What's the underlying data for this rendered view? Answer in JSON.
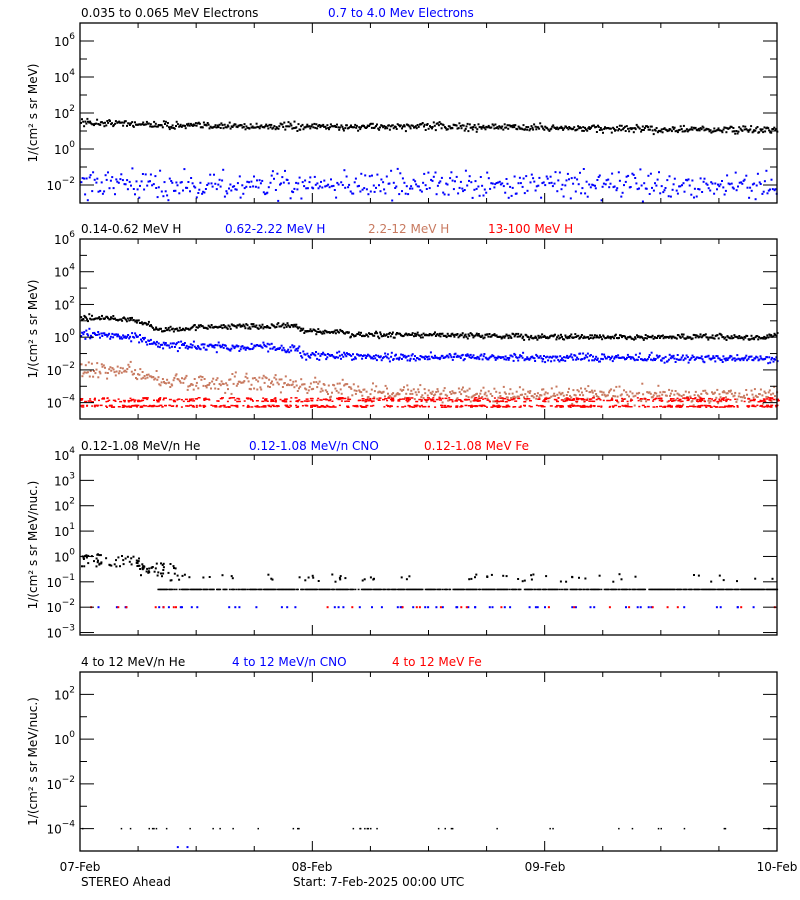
{
  "chart_data": [
    {
      "type": "scatter",
      "ylabel": "1/(cm² s sr MeV)",
      "yscale": "log",
      "ylim": [
        0.001,
        10000000
      ],
      "ytick_exponents": [
        -2,
        0,
        2,
        4,
        6
      ],
      "minor_exponents": [
        -1,
        1,
        3,
        5
      ],
      "series": [
        {
          "name": "0.035 to 0.065 MeV Electrons",
          "color": "#000000",
          "trend": [
            [
              0,
              30
            ],
            [
              6,
              25
            ],
            [
              10,
              20
            ],
            [
              24,
              17
            ],
            [
              36,
              18
            ],
            [
              48,
              15
            ],
            [
              60,
              12
            ],
            [
              72,
              11
            ]
          ]
        },
        {
          "name": "0.7 to 4.0 Mev Electrons",
          "color": "#0000ff",
          "trend": [
            [
              0,
              0.01
            ],
            [
              24,
              0.01
            ],
            [
              48,
              0.01
            ],
            [
              72,
              0.01
            ]
          ]
        }
      ]
    },
    {
      "type": "scatter",
      "ylabel": "1/(cm² s sr MeV)",
      "yscale": "log",
      "ylim": [
        1e-05,
        1000000
      ],
      "ytick_exponents": [
        -4,
        -2,
        0,
        2,
        4,
        6
      ],
      "minor_exponents": [
        -3,
        -1,
        1,
        3,
        5
      ],
      "series": [
        {
          "name": "0.14-0.62 MeV H",
          "color": "#000000",
          "trend": [
            [
              0,
              15
            ],
            [
              5,
              13
            ],
            [
              7,
              6
            ],
            [
              8,
              2.5
            ],
            [
              10,
              3
            ],
            [
              12,
              4
            ],
            [
              20,
              5
            ],
            [
              22.5,
              4.5
            ],
            [
              23,
              2.5
            ],
            [
              27,
              2
            ],
            [
              28,
              1.4
            ],
            [
              40,
              1.3
            ],
            [
              50,
              1
            ],
            [
              66,
              1
            ],
            [
              70,
              0.9
            ],
            [
              72,
              1.4
            ]
          ]
        },
        {
          "name": "0.62-2.22 MeV H",
          "color": "#0000ff",
          "trend": [
            [
              0,
              1.5
            ],
            [
              5,
              1.3
            ],
            [
              8,
              0.35
            ],
            [
              15,
              0.25
            ],
            [
              20,
              0.25
            ],
            [
              22.5,
              0.18
            ],
            [
              23,
              0.08
            ],
            [
              35,
              0.06
            ],
            [
              50,
              0.055
            ],
            [
              72,
              0.05
            ]
          ]
        },
        {
          "name": "2.2-12 MeV H",
          "color": "#c87a60",
          "trend": [
            [
              0,
              0.01
            ],
            [
              5,
              0.009
            ],
            [
              8,
              0.0022
            ],
            [
              15,
              0.0015
            ],
            [
              20,
              0.0015
            ],
            [
              25,
              0.0008
            ],
            [
              30,
              0.0004
            ],
            [
              50,
              0.0003
            ],
            [
              72,
              0.0003
            ]
          ]
        },
        {
          "name": "13-100 MeV H",
          "color": "#ff0000",
          "trend": [
            [
              0,
              0.0001
            ],
            [
              72,
              0.0001
            ]
          ]
        }
      ]
    },
    {
      "type": "scatter",
      "ylabel": "1/(cm² s sr MeV/nuc.)",
      "yscale": "log",
      "ylim": [
        0.0008,
        10000
      ],
      "ytick_exponents": [
        -3,
        -2,
        -1,
        0,
        1,
        2,
        3,
        4
      ],
      "minor_exponents": [],
      "series": [
        {
          "name": "0.12-1.08 MeV/n He",
          "color": "#000000",
          "trend": [
            [
              0,
              0.7
            ],
            [
              6,
              0.6
            ],
            [
              8,
              0.12
            ],
            [
              10,
              0.05
            ],
            [
              72,
              0.05
            ]
          ]
        },
        {
          "name": "0.12-1.08 MeV/n CNO",
          "color": "#0000ff",
          "trend": [
            [
              0,
              0.01
            ],
            [
              72,
              0.01
            ]
          ]
        },
        {
          "name": "0.12-1.08 MeV Fe",
          "color": "#ff0000",
          "trend": [
            [
              0,
              0.01
            ],
            [
              72,
              0.01
            ]
          ]
        }
      ]
    },
    {
      "type": "scatter",
      "ylabel": "1/(cm² s sr MeV/nuc.)",
      "yscale": "log",
      "ylim": [
        1e-05,
        1000
      ],
      "ytick_exponents": [
        -4,
        -2,
        0,
        2
      ],
      "minor_exponents": [
        -3,
        -1,
        1
      ],
      "series": [
        {
          "name": "4 to 12 MeV/n He",
          "color": "#000000",
          "trend": [
            [
              0,
              0.0001
            ],
            [
              72,
              0.0001
            ]
          ]
        },
        {
          "name": "4 to 12 MeV/n CNO",
          "color": "#0000ff",
          "trend": [
            [
              10,
              1.5e-05
            ],
            [
              11,
              1.5e-05
            ]
          ]
        },
        {
          "name": "4 to 12 MeV Fe",
          "color": "#ff0000",
          "trend": []
        }
      ]
    }
  ],
  "x_axis": {
    "ticks": [
      "07-Feb",
      "08-Feb",
      "09-Feb",
      "10-Feb"
    ],
    "range_hours": [
      0,
      72
    ],
    "minor_every_hours": 6
  },
  "footer": {
    "spacecraft": "STEREO Ahead",
    "start": "Start:  7-Feb-2025 00:00 UTC"
  }
}
